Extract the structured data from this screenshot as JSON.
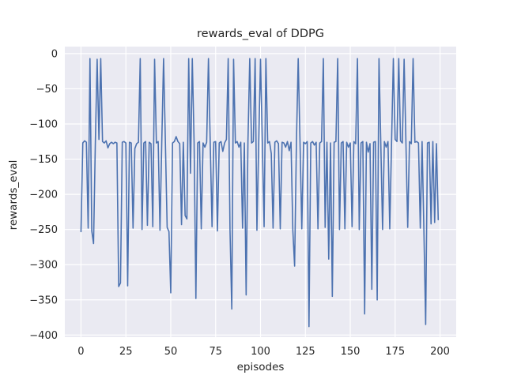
{
  "figure": {
    "title": "rewards_eval of DDPG",
    "xlabel": "episodes",
    "ylabel": "rewards_eval"
  },
  "style": {
    "line_color": "#4C72B0",
    "plot_bg": "#EAEAF2",
    "grid_color": "#FFFFFF",
    "text_color": "#262626",
    "figure_bg": "#FFFFFF",
    "line_width": 1.6,
    "grid_width": 1.2
  },
  "ticks": {
    "x_labels": [
      "0",
      "25",
      "50",
      "75",
      "100",
      "125",
      "150",
      "175",
      "200"
    ],
    "y_labels": [
      "0",
      "−50",
      "−100",
      "−150",
      "−200",
      "−250",
      "−300",
      "−350",
      "−400"
    ]
  },
  "chart_data": {
    "type": "line",
    "title": "rewards_eval of DDPG",
    "xlabel": "episodes",
    "ylabel": "rewards_eval",
    "x_description": "episode index, one point per episode from 0 to 199",
    "xticks": [
      0,
      25,
      50,
      75,
      100,
      125,
      150,
      175,
      200
    ],
    "yticks": [
      0,
      -50,
      -100,
      -150,
      -200,
      -250,
      -300,
      -350,
      -400
    ],
    "xlim": [
      -9,
      209
    ],
    "ylim": [
      -403,
      10
    ],
    "grid": true,
    "legend": "none",
    "series": [
      {
        "name": "rewards_eval",
        "values": [
          -253,
          -127,
          -124,
          -126,
          -248,
          -7,
          -252,
          -270,
          -126,
          -8,
          -122,
          -7,
          -125,
          -127,
          -124,
          -134,
          -128,
          -126,
          -128,
          -126,
          -127,
          -331,
          -326,
          -126,
          -125,
          -127,
          -330,
          -126,
          -127,
          -248,
          -135,
          -128,
          -126,
          -7,
          -250,
          -127,
          -125,
          -244,
          -126,
          -128,
          -246,
          -8,
          -127,
          -125,
          -251,
          -126,
          -7,
          -125,
          -247,
          -253,
          -340,
          -127,
          -125,
          -118,
          -125,
          -128,
          -243,
          -126,
          -230,
          -235,
          -7,
          -170,
          -7,
          -126,
          -348,
          -127,
          -125,
          -249,
          -127,
          -133,
          -126,
          -7,
          -128,
          -246,
          -126,
          -125,
          -252,
          -127,
          -125,
          -139,
          -127,
          -122,
          -7,
          -250,
          -363,
          -8,
          -127,
          -125,
          -133,
          -126,
          -248,
          -127,
          -343,
          -125,
          -7,
          -127,
          -125,
          -7,
          -251,
          -126,
          -8,
          -125,
          -246,
          -7,
          -127,
          -125,
          -142,
          -248,
          -126,
          -124,
          -128,
          -249,
          -126,
          -127,
          -133,
          -125,
          -138,
          -126,
          -251,
          -302,
          -127,
          -7,
          -125,
          -249,
          -126,
          -128,
          -125,
          -388,
          -127,
          -125,
          -130,
          -126,
          -249,
          -127,
          -125,
          -7,
          -247,
          -126,
          -292,
          -127,
          -345,
          -126,
          -125,
          -7,
          -250,
          -127,
          -125,
          -249,
          -126,
          -133,
          -127,
          -246,
          -125,
          -128,
          -7,
          -250,
          -127,
          -125,
          -370,
          -126,
          -140,
          -128,
          -335,
          -126,
          -125,
          -350,
          -7,
          -127,
          -250,
          -125,
          -133,
          -125,
          -249,
          -126,
          -7,
          -122,
          -125,
          -7,
          -124,
          -127,
          -8,
          -126,
          -247,
          -125,
          -128,
          -7,
          -126,
          -125,
          -127,
          -248,
          -125,
          -250,
          -385,
          -127,
          -126,
          -242,
          -125,
          -240,
          -128,
          -236
        ]
      }
    ]
  }
}
